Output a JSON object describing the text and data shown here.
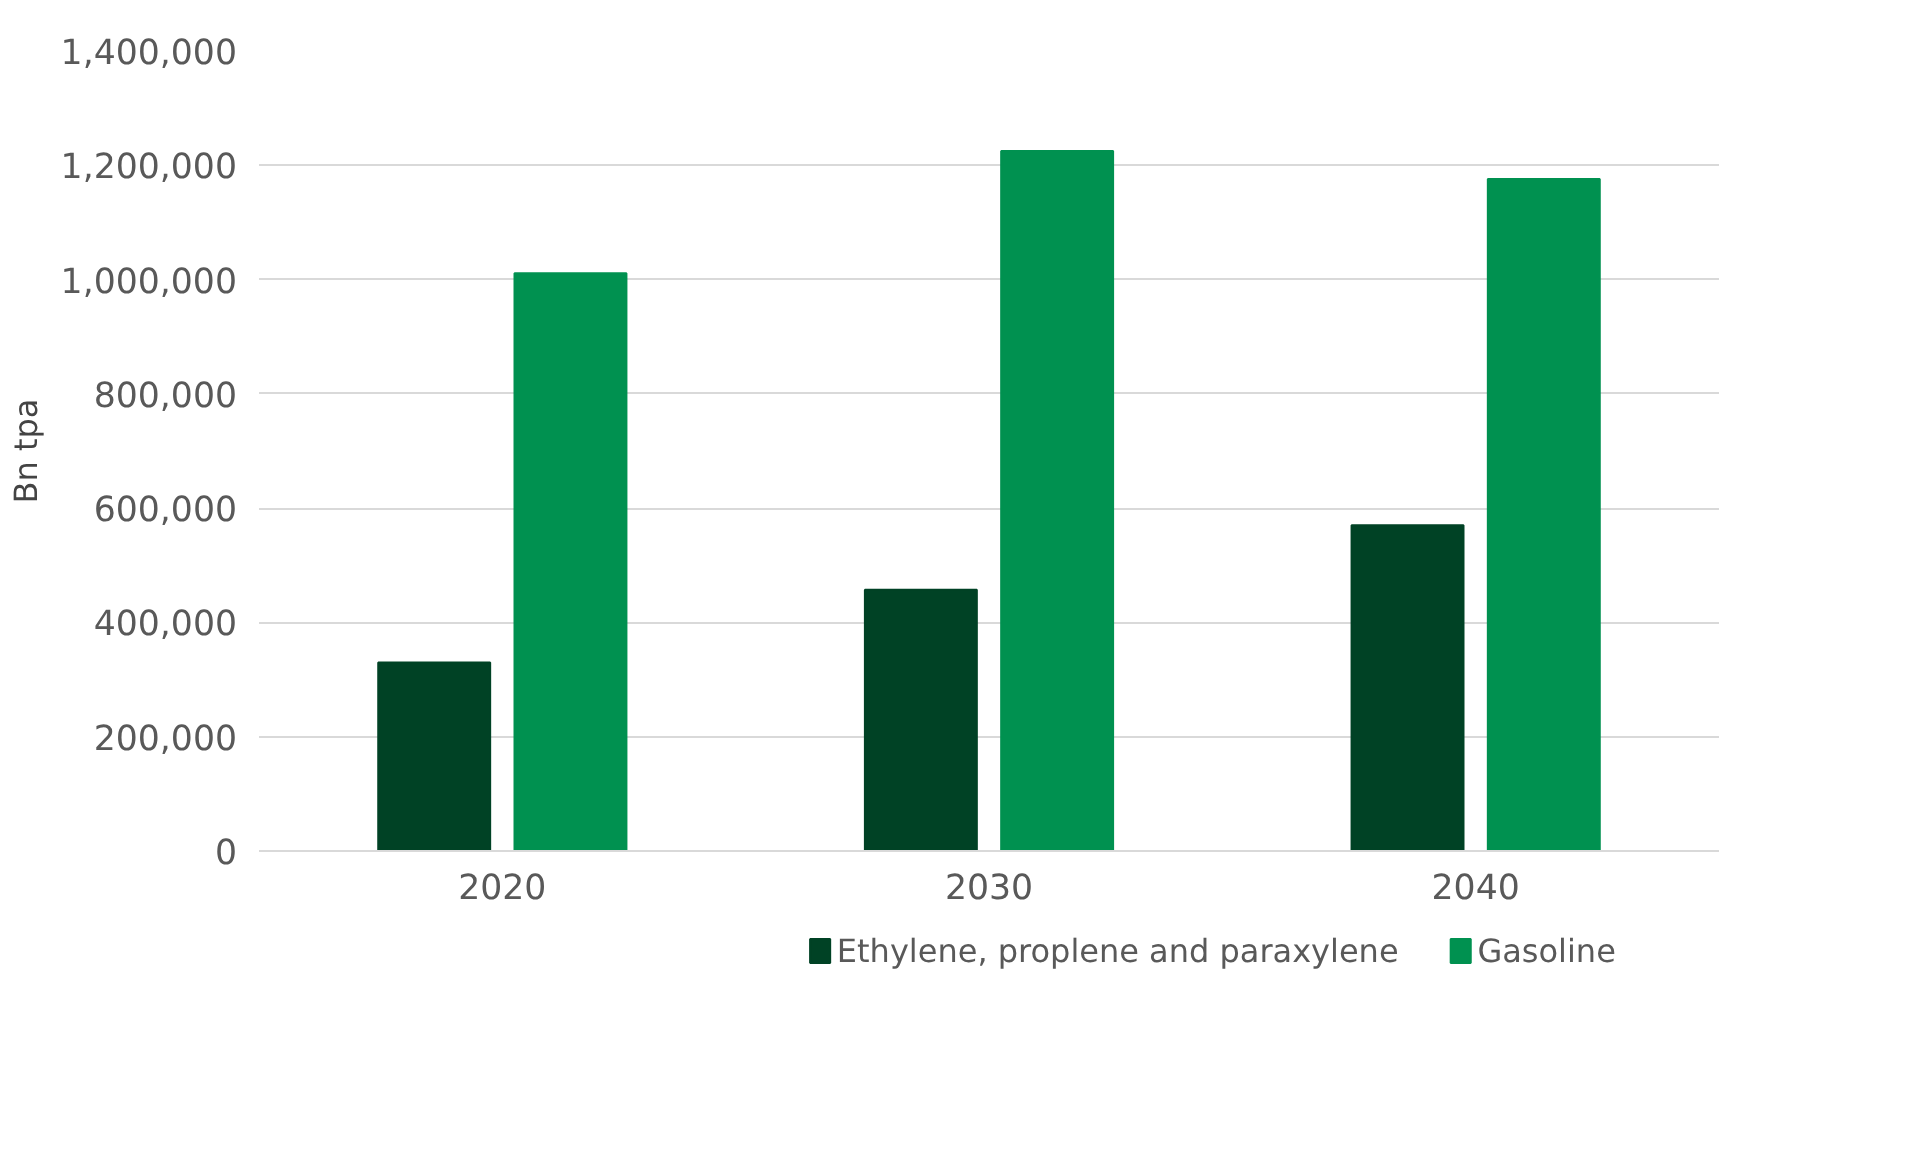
{
  "chart_data": {
    "type": "bar",
    "ylabel": "Bn tpa",
    "categories": [
      "2020",
      "2030",
      "2040"
    ],
    "series": [
      {
        "name": "Ethylene, proplene and paraxylene",
        "color": "#004225",
        "values": [
          330000,
          457000,
          570000
        ]
      },
      {
        "name": "Gasoline",
        "color": "#009150",
        "values": [
          1011000,
          1225000,
          1176000
        ]
      }
    ],
    "ylim": [
      0,
      1400000
    ],
    "yticks": [
      {
        "value": 0,
        "label": "0"
      },
      {
        "value": 200000,
        "label": "200,000"
      },
      {
        "value": 400000,
        "label": "400,000"
      },
      {
        "value": 600000,
        "label": "600,000"
      },
      {
        "value": 800000,
        "label": "800,000"
      },
      {
        "value": 1000000,
        "label": "1,000,000"
      },
      {
        "value": 1200000,
        "label": "1,200,000"
      },
      {
        "value": 1400000,
        "label": "1,400,000"
      }
    ],
    "grid": "y",
    "legend": "bottom"
  }
}
